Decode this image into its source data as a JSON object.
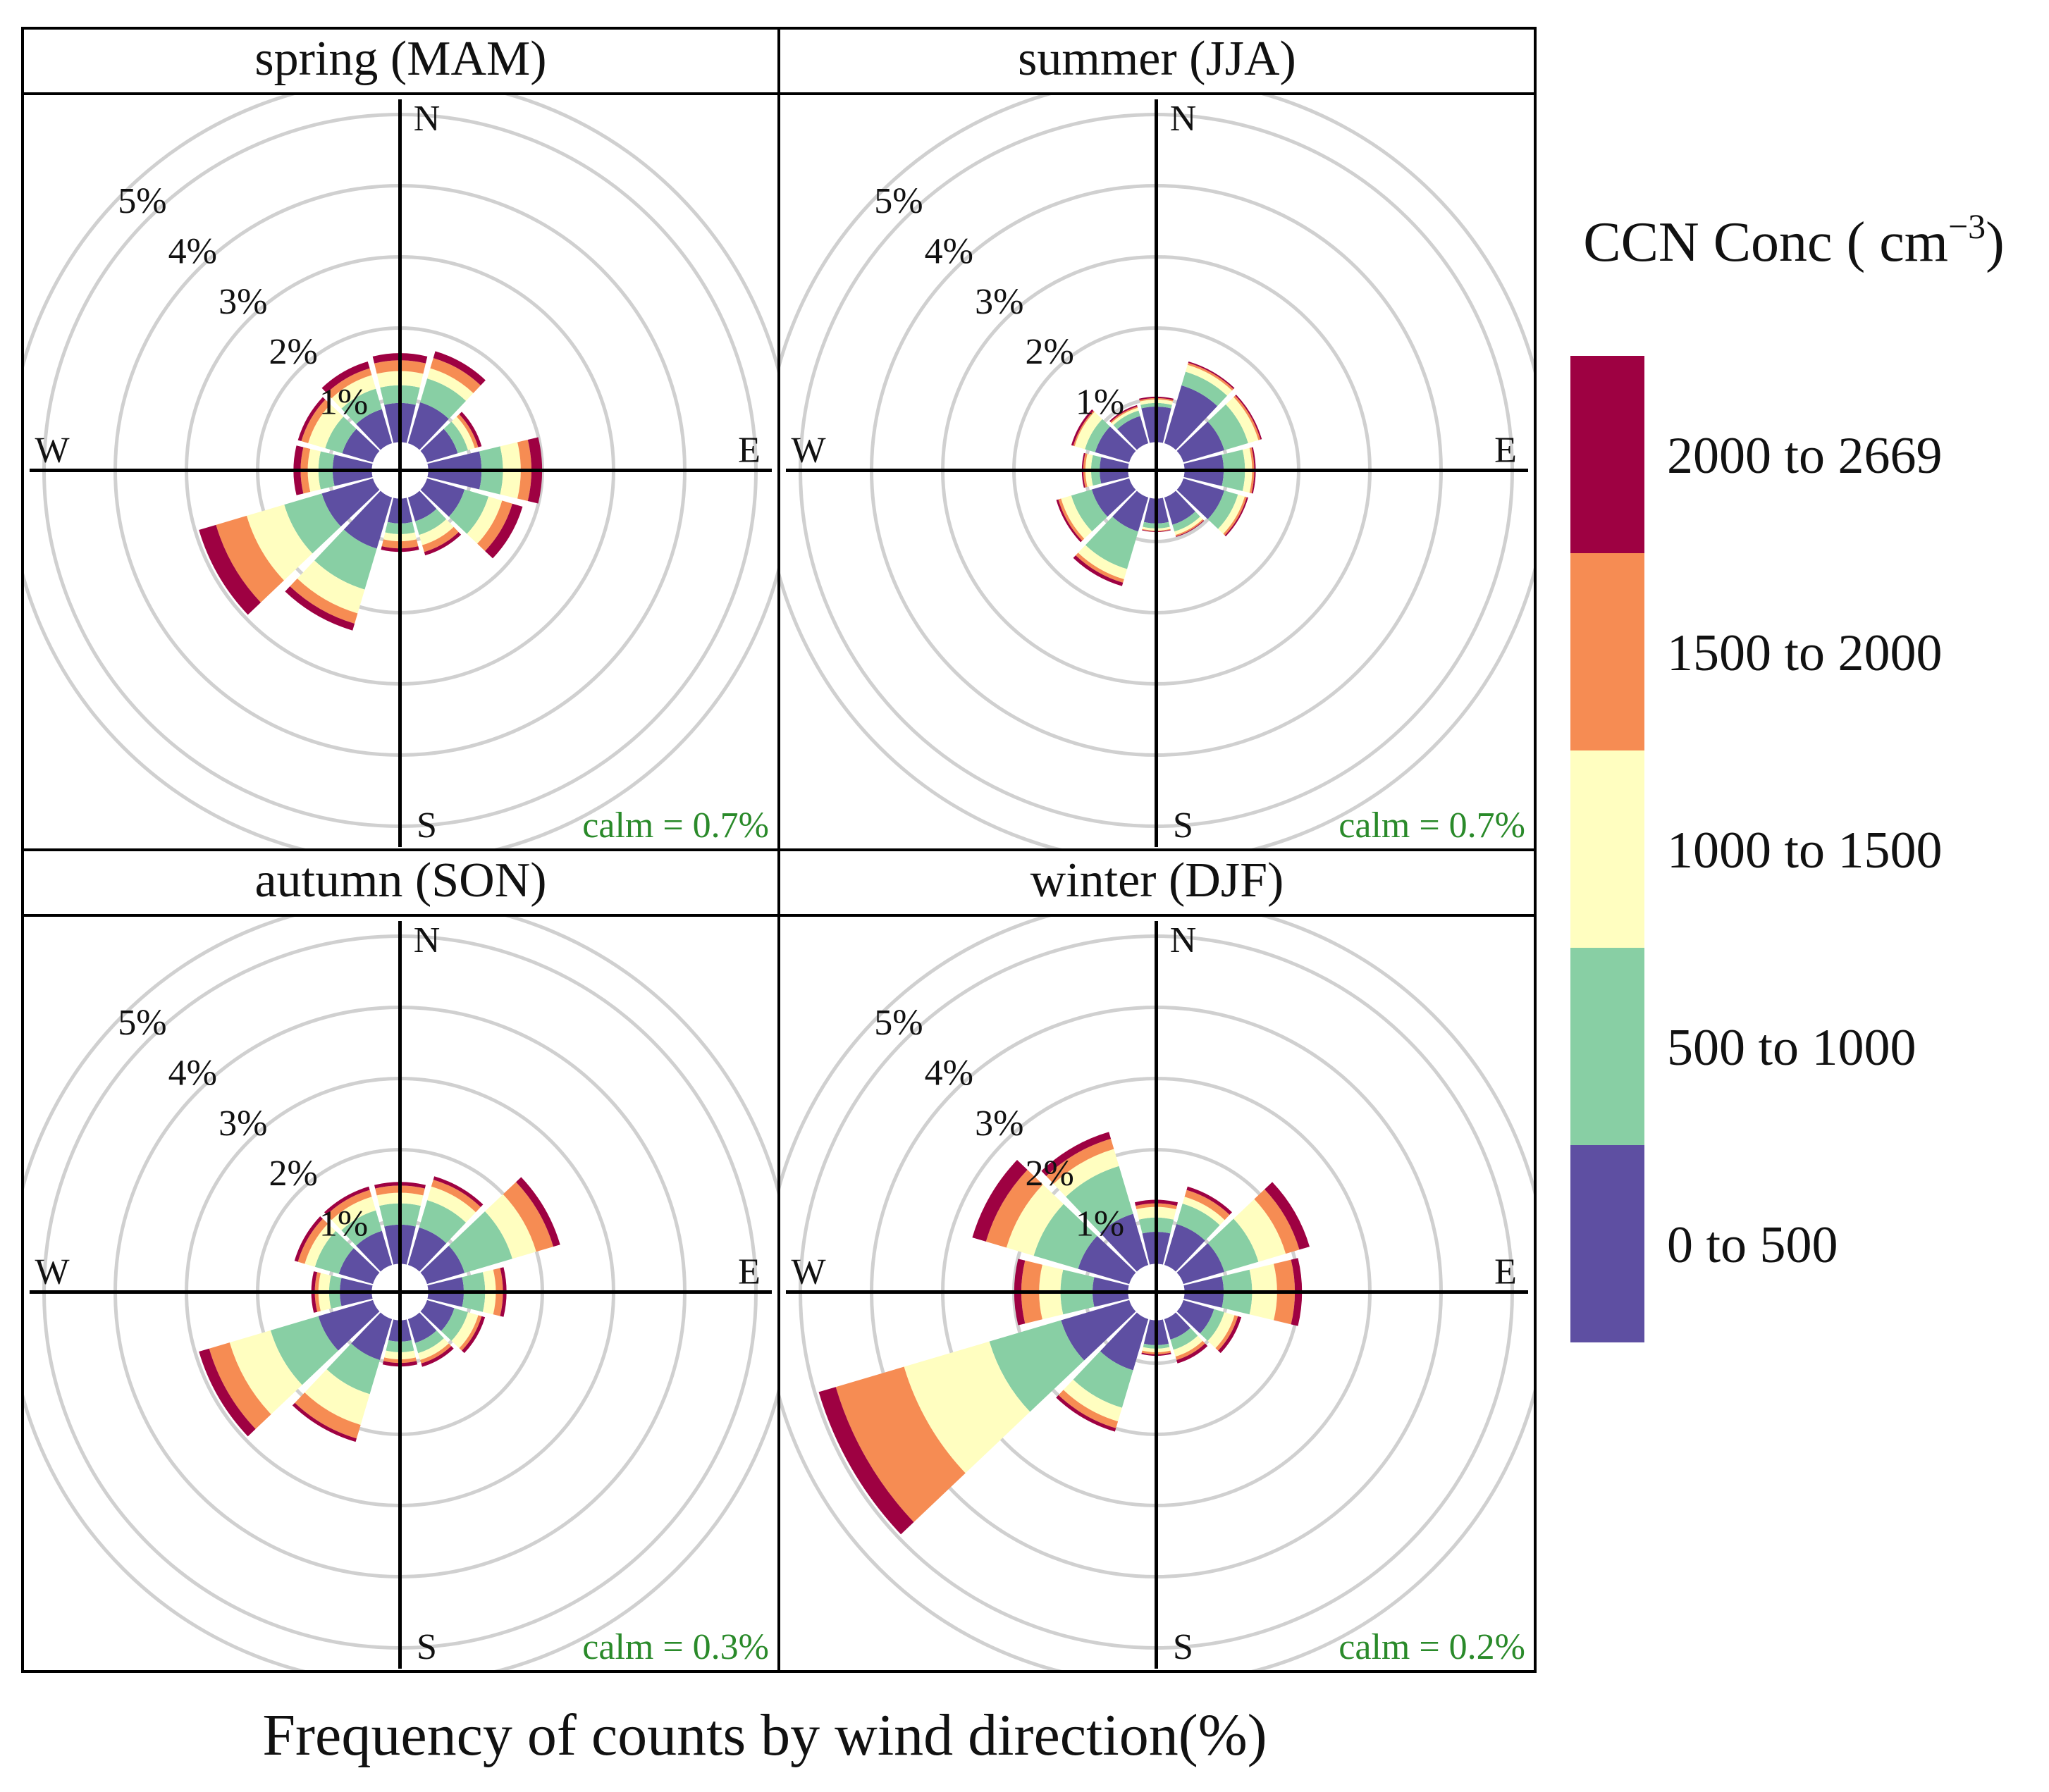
{
  "figure": {
    "xlabel": "Frequency of counts by wind direction(%)",
    "legend_title_main": "CCN Conc ( cm",
    "legend_title_sup": "−3",
    "legend_title_close": ")"
  },
  "chart_data": {
    "type": "polar-bar (wind rose)",
    "description_units": "percent of counts",
    "direction_labels": [
      "N",
      "E",
      "S",
      "W"
    ],
    "ring_labels": [
      "1%",
      "2%",
      "3%",
      "4%",
      "5%"
    ],
    "ring_values": [
      1,
      2,
      3,
      4,
      5
    ],
    "max_radius": 5.5,
    "bins": [
      {
        "label": "0 to 500",
        "color": "#5e4fa2"
      },
      {
        "label": "500 to 1000",
        "color": "#88cfa4"
      },
      {
        "label": "1000 to 1500",
        "color": "#fffec0"
      },
      {
        "label": "1500 to 2000",
        "color": "#f68c53"
      },
      {
        "label": "2000 to 2669",
        "color": "#9e0142"
      }
    ],
    "direction_angles_deg": [
      0,
      30,
      60,
      90,
      120,
      150,
      180,
      210,
      240,
      270,
      300,
      330
    ],
    "panels": [
      {
        "title": "spring (MAM)",
        "calm": "calm = 0.7%",
        "stacks": [
          [
            0.55,
            0.8,
            1.0,
            1.15,
            1.25
          ],
          [
            0.6,
            0.95,
            1.1,
            1.25,
            1.35
          ],
          [
            0.45,
            0.6,
            0.7,
            0.75,
            0.8
          ],
          [
            0.75,
            1.05,
            1.3,
            1.45,
            1.6
          ],
          [
            0.55,
            0.9,
            1.1,
            1.25,
            1.4
          ],
          [
            0.35,
            0.55,
            0.7,
            0.8,
            0.85
          ],
          [
            0.35,
            0.5,
            0.6,
            0.7,
            0.75
          ],
          [
            0.75,
            1.35,
            1.7,
            1.85,
            1.95
          ],
          [
            0.75,
            1.3,
            1.85,
            2.3,
            2.55
          ],
          [
            0.55,
            0.75,
            0.9,
            1.0,
            1.1
          ],
          [
            0.45,
            0.7,
            0.95,
            1.05,
            1.1
          ],
          [
            0.5,
            0.8,
            1.0,
            1.1,
            1.2
          ]
        ]
      },
      {
        "title": "summer (JJA)",
        "calm": "calm = 0.7%",
        "stacks": [
          [
            0.5,
            0.55,
            0.6,
            0.62,
            0.64
          ],
          [
            0.85,
            1.05,
            1.15,
            1.18,
            1.2
          ],
          [
            0.6,
            0.95,
            1.1,
            1.13,
            1.15
          ],
          [
            0.55,
            0.85,
            0.95,
            0.98,
            1.0
          ],
          [
            0.6,
            0.8,
            0.9,
            0.93,
            0.95
          ],
          [
            0.4,
            0.5,
            0.55,
            0.57,
            0.58
          ],
          [
            0.35,
            0.42,
            0.45,
            0.46,
            0.47
          ],
          [
            0.5,
            1.05,
            1.2,
            1.25,
            1.3
          ],
          [
            0.55,
            0.85,
            1.0,
            1.04,
            1.07
          ],
          [
            0.4,
            0.52,
            0.6,
            0.63,
            0.65
          ],
          [
            0.5,
            0.65,
            0.8,
            0.82,
            0.85
          ],
          [
            0.4,
            0.48,
            0.52,
            0.54,
            0.56
          ]
        ]
      },
      {
        "title": "autumn (SON)",
        "calm": "calm = 0.3%",
        "stacks": [
          [
            0.55,
            0.85,
            1.0,
            1.1,
            1.15
          ],
          [
            0.55,
            0.95,
            1.15,
            1.25,
            1.3
          ],
          [
            0.55,
            1.25,
            1.6,
            1.85,
            1.95
          ],
          [
            0.5,
            0.8,
            0.95,
            1.05,
            1.1
          ],
          [
            0.4,
            0.6,
            0.75,
            0.8,
            0.85
          ],
          [
            0.35,
            0.5,
            0.6,
            0.65,
            0.7
          ],
          [
            0.3,
            0.45,
            0.55,
            0.6,
            0.65
          ],
          [
            0.6,
            1.1,
            1.55,
            1.75,
            1.8
          ],
          [
            0.8,
            1.5,
            2.1,
            2.4,
            2.55
          ],
          [
            0.45,
            0.6,
            0.75,
            0.8,
            0.85
          ],
          [
            0.5,
            0.85,
            1.0,
            1.1,
            1.15
          ],
          [
            0.5,
            0.8,
            1.0,
            1.1,
            1.15
          ]
        ]
      },
      {
        "title": "winter (DJF)",
        "calm": "calm = 0.2%",
        "stacks": [
          [
            0.45,
            0.65,
            0.8,
            0.85,
            0.9
          ],
          [
            0.6,
            0.9,
            1.0,
            1.1,
            1.15
          ],
          [
            0.6,
            1.1,
            1.5,
            1.7,
            1.85
          ],
          [
            0.55,
            0.95,
            1.3,
            1.55,
            1.65
          ],
          [
            0.45,
            0.6,
            0.75,
            0.8,
            0.85
          ],
          [
            0.3,
            0.45,
            0.55,
            0.6,
            0.65
          ],
          [
            0.35,
            0.4,
            0.45,
            0.48,
            0.5
          ],
          [
            0.75,
            1.3,
            1.5,
            1.6,
            1.65
          ],
          [
            1.0,
            2.05,
            3.3,
            4.3,
            4.55
          ],
          [
            0.5,
            0.95,
            1.25,
            1.5,
            1.6
          ],
          [
            0.75,
            1.4,
            1.8,
            2.1,
            2.3
          ],
          [
            0.75,
            1.45,
            1.7,
            1.85,
            1.95
          ]
        ]
      }
    ]
  }
}
